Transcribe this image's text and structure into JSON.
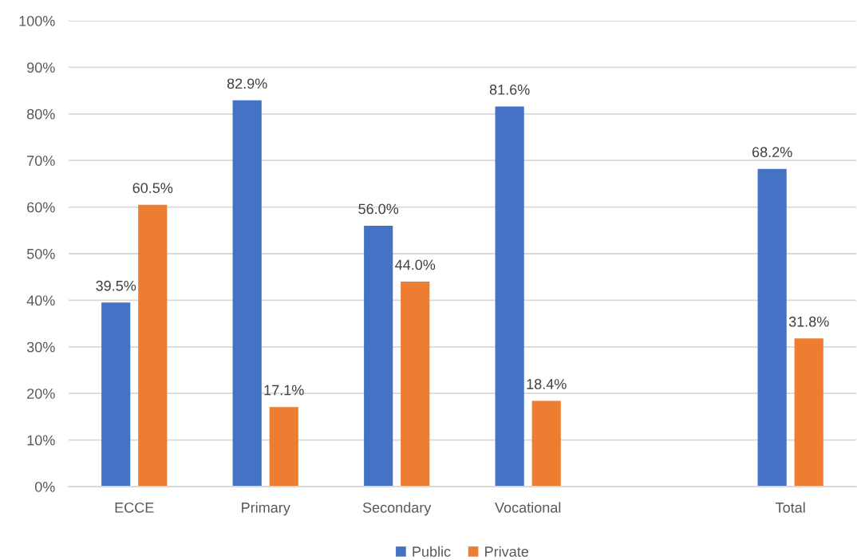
{
  "chart_data": {
    "type": "bar",
    "categories": [
      "ECCE",
      "Primary",
      "Secondary",
      "Vocational",
      null,
      "Total"
    ],
    "series": [
      {
        "name": "Public",
        "color": "#4472c4",
        "values": [
          39.5,
          82.9,
          56.0,
          81.6,
          null,
          68.2
        ],
        "value_labels": [
          "39.5%",
          "82.9%",
          "56.0%",
          "81.6%",
          null,
          "68.2%"
        ]
      },
      {
        "name": "Private",
        "color": "#ed7d31",
        "values": [
          60.5,
          17.1,
          44.0,
          18.4,
          null,
          31.8
        ],
        "value_labels": [
          "60.5%",
          "17.1%",
          "44.0%",
          "18.4%",
          null,
          "31.8%"
        ]
      }
    ],
    "ylim": [
      0,
      100
    ],
    "yticks": [
      {
        "value": 0,
        "label": "0%"
      },
      {
        "value": 10,
        "label": "10%"
      },
      {
        "value": 20,
        "label": "20%"
      },
      {
        "value": 30,
        "label": "30%"
      },
      {
        "value": 40,
        "label": "40%"
      },
      {
        "value": 50,
        "label": "50%"
      },
      {
        "value": 60,
        "label": "60%"
      },
      {
        "value": 70,
        "label": "70%"
      },
      {
        "value": 80,
        "label": "80%"
      },
      {
        "value": 90,
        "label": "90%"
      },
      {
        "value": 100,
        "label": "100%"
      }
    ],
    "grid": "y",
    "legend": "bottom"
  }
}
